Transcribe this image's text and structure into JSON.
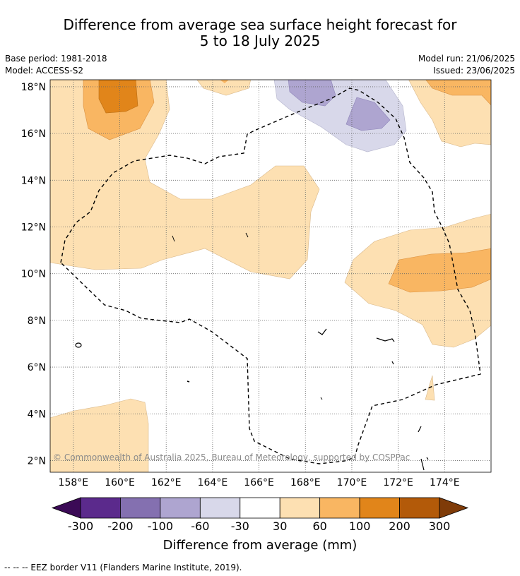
{
  "title": {
    "line1": "Difference from average sea surface height forecast for",
    "line2": "5 to 18 July 2025"
  },
  "meta": {
    "base_period": "Base period: 1981-2018",
    "model": "Model: ACCESS-S2",
    "model_run": "Model run: 21/06/2025",
    "issued": "Issued: 23/06/2025"
  },
  "map": {
    "lon_range": [
      157,
      176
    ],
    "lat_range": [
      1.5,
      18.3
    ],
    "lon_ticks": [
      "158°E",
      "160°E",
      "162°E",
      "164°E",
      "166°E",
      "168°E",
      "170°E",
      "172°E",
      "174°E"
    ],
    "lat_ticks": [
      "18°N",
      "16°N",
      "14°N",
      "12°N",
      "10°N",
      "8°N",
      "6°N",
      "4°N",
      "2°N"
    ],
    "grid": true,
    "copyright": "© Commonwealth of Australia 2025, Bureau of Meteorology, supported by COSPPac"
  },
  "colorbar": {
    "ticks": [
      "-300",
      "-200",
      "-100",
      "-60",
      "-30",
      "30",
      "60",
      "100",
      "200",
      "300"
    ],
    "colors": [
      "#5b2a8c",
      "#8470b0",
      "#aea5d0",
      "#d8d8ea",
      "#ffffff",
      "#fde0b2",
      "#f9b662",
      "#e1851a",
      "#b35a09"
    ],
    "extend_low_color": "#3b0a56",
    "extend_high_color": "#7f3b08",
    "label": "Difference from average (mm)"
  },
  "legend": {
    "eez": "--  --  -- EEZ border V11 (Flanders Marine Institute, 2019)."
  }
}
